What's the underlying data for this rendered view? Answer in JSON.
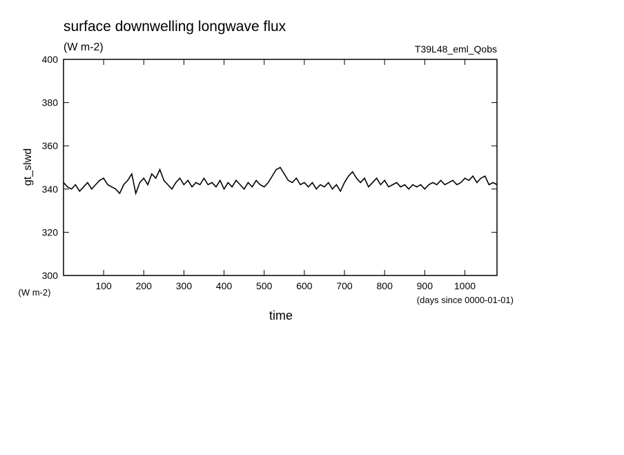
{
  "chart_data": {
    "type": "line",
    "title": "surface downwelling longwave flux",
    "subtitle": "(W m-2)",
    "annotation": "T39L48_eml_Qobs",
    "y_label": "gt_slwd",
    "y_unit": "(W m-2)",
    "x_label": "time",
    "x_unit": "(days since 0000-01-01)",
    "xlim": [
      0,
      1080
    ],
    "ylim": [
      300,
      400
    ],
    "xticks": [
      100,
      200,
      300,
      400,
      500,
      600,
      700,
      800,
      900,
      1000
    ],
    "yticks": [
      300,
      320,
      340,
      360,
      380,
      400
    ],
    "series": [
      {
        "name": "gt_slwd",
        "color": "#000000",
        "x": [
          0,
          10,
          20,
          30,
          40,
          50,
          60,
          70,
          80,
          90,
          100,
          110,
          120,
          130,
          140,
          150,
          160,
          170,
          180,
          190,
          200,
          210,
          220,
          230,
          240,
          250,
          260,
          270,
          280,
          290,
          300,
          310,
          320,
          330,
          340,
          350,
          360,
          370,
          380,
          390,
          400,
          410,
          420,
          430,
          440,
          450,
          460,
          470,
          480,
          490,
          500,
          510,
          520,
          530,
          540,
          550,
          560,
          570,
          580,
          590,
          600,
          610,
          620,
          630,
          640,
          650,
          660,
          670,
          680,
          690,
          700,
          710,
          720,
          730,
          740,
          750,
          760,
          770,
          780,
          790,
          800,
          810,
          820,
          830,
          840,
          850,
          860,
          870,
          880,
          890,
          900,
          910,
          920,
          930,
          940,
          950,
          960,
          970,
          980,
          990,
          1000,
          1010,
          1020,
          1030,
          1040,
          1050,
          1060,
          1070,
          1080
        ],
        "values": [
          343,
          341,
          340,
          342,
          339,
          341,
          343,
          340,
          342,
          344,
          345,
          342,
          341,
          340,
          338,
          342,
          344,
          347,
          338,
          343,
          345,
          342,
          347,
          345,
          349,
          344,
          342,
          340,
          343,
          345,
          342,
          344,
          341,
          343,
          342,
          345,
          342,
          343,
          341,
          344,
          340,
          343,
          341,
          344,
          342,
          340,
          343,
          341,
          344,
          342,
          341,
          343,
          346,
          349,
          350,
          347,
          344,
          343,
          345,
          342,
          343,
          341,
          343,
          340,
          342,
          341,
          343,
          340,
          342,
          339,
          343,
          346,
          348,
          345,
          343,
          345,
          341,
          343,
          345,
          342,
          344,
          341,
          342,
          343,
          341,
          342,
          340,
          342,
          341,
          342,
          340,
          342,
          343,
          342,
          344,
          342,
          343,
          344,
          342,
          343,
          345,
          344,
          346,
          343,
          345,
          346,
          342,
          343,
          342
        ]
      }
    ]
  }
}
